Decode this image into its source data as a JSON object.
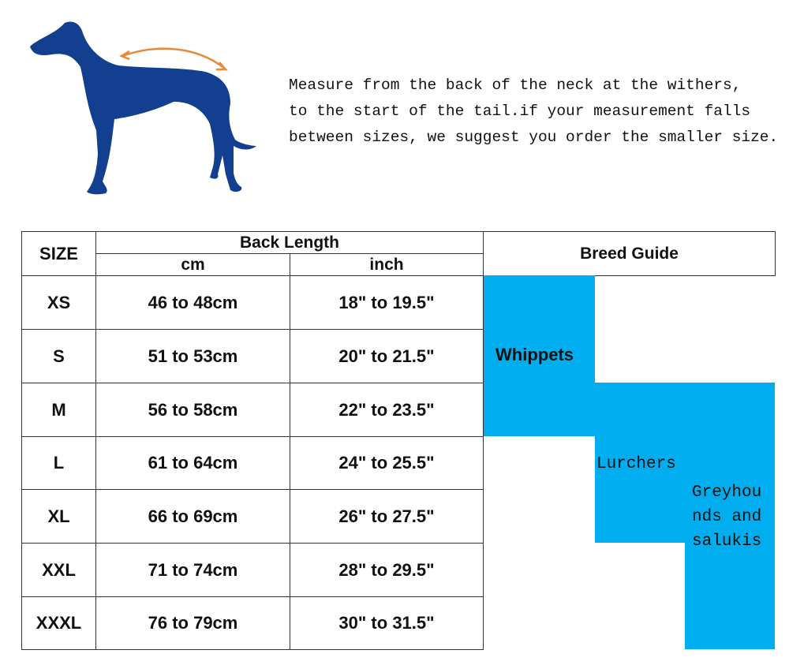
{
  "description": {
    "lines": [
      "Measure from the back of the neck at the withers,",
      "to the start of the tail.if your measurement falls",
      "between sizes, we suggest you order the smaller size."
    ]
  },
  "illustration": {
    "name": "greyhound-silhouette",
    "dog_color": "#123f8f",
    "arrow_color": "#e8893a"
  },
  "table": {
    "headers": {
      "size": "SIZE",
      "back_length": "Back Length",
      "cm": "cm",
      "inch": "inch",
      "breed_guide": "Breed Guide"
    },
    "rows": [
      {
        "size": "XS",
        "cm": "46 to 48cm",
        "inch": "18\" to 19.5\""
      },
      {
        "size": "S",
        "cm": "51 to 53cm",
        "inch": "20\" to 21.5\""
      },
      {
        "size": "M",
        "cm": "56 to 58cm",
        "inch": "22\" to 23.5\""
      },
      {
        "size": "L",
        "cm": "61 to 64cm",
        "inch": "24\" to 25.5\""
      },
      {
        "size": "XL",
        "cm": "66 to 69cm",
        "inch": "26\" to 27.5\""
      },
      {
        "size": "XXL",
        "cm": "71 to 74cm",
        "inch": "28\" to 29.5\""
      },
      {
        "size": "XXXL",
        "cm": "76 to 79cm",
        "inch": "30\" to 31.5\""
      }
    ],
    "breeds": [
      {
        "name": "Whippets",
        "sizes": [
          "XS",
          "S",
          "M"
        ]
      },
      {
        "name": "Lurchers",
        "sizes": [
          "M",
          "L",
          "XL"
        ]
      },
      {
        "name": "Greyhounds and salukis",
        "lines": [
          "Greyhou",
          "nds and",
          "salukis"
        ],
        "sizes": [
          "M",
          "L",
          "XL",
          "XXL",
          "XXXL"
        ]
      }
    ],
    "highlight_color": "#00aeef"
  }
}
